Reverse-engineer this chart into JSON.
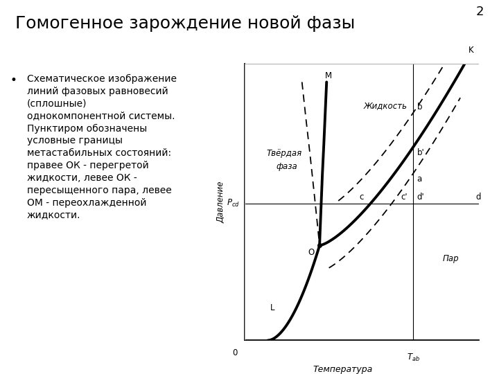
{
  "title": "Гомогенное зарождение новой фазы",
  "slide_number": "2",
  "bullet_text": "Схематическое изображение\nлиний фазовых равновесий\n(сплошные)\nоднокомпонентной системы.\nПунктиром обозначены\nусловные границы\nметастабильных состояний:\nправее ОК - перегретой\nжидкости, левее ОК -\nпересыщенного пара, левее\nОМ - переохлажденной\nжидкости.",
  "xlabel": "Температура",
  "ylabel": "Давление",
  "bg_color": "#ffffff",
  "diagram_bg": "#f8f8f8",
  "text_color": "#000000"
}
